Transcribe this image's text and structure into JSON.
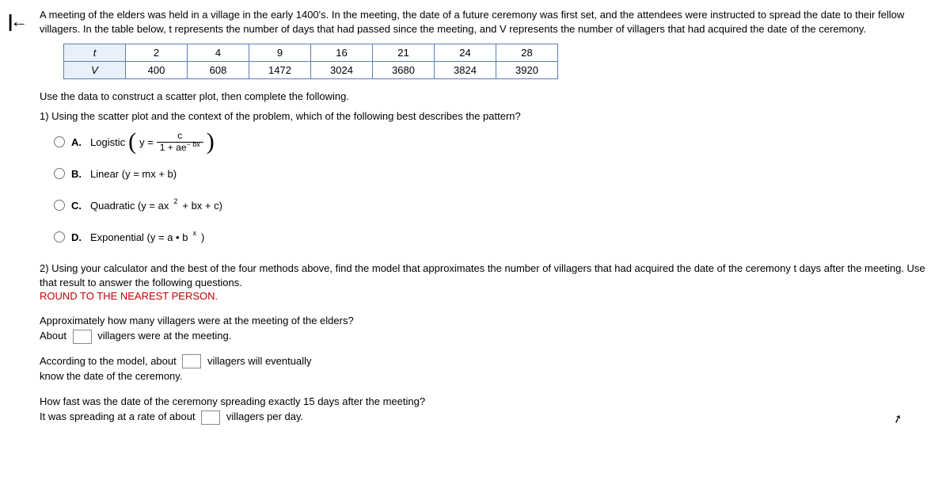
{
  "intro": "A meeting of the elders was held in a village in the early 1400's. In the meeting, the date of a future ceremony was first set, and the attendees were instructed to spread the date to their fellow villagers. In the table below, t represents the number of days that had passed since the meeting, and V represents the number of villagers that had acquired the date of the ceremony.",
  "table": {
    "row1_label": "t",
    "row2_label": "V",
    "t": [
      "2",
      "4",
      "9",
      "16",
      "21",
      "24",
      "28"
    ],
    "v": [
      "400",
      "608",
      "1472",
      "3024",
      "3680",
      "3824",
      "3920"
    ],
    "header_bg": "#eaf0fa",
    "border_color": "#5a7fb5"
  },
  "instruction": "Use the data to construct a scatter plot, then complete the following.",
  "q1": {
    "prompt": "1) Using the scatter plot and the context of the problem, which of the following best describes the pattern?",
    "A": {
      "letter": "A.",
      "name": "Logistic",
      "ypre": "y =",
      "num": "c",
      "den_pre": "1 + a",
      "den_e": "e",
      "den_exp": "− bx"
    },
    "B": {
      "letter": "B.",
      "text": "Linear (y = mx + b)"
    },
    "C": {
      "letter": "C.",
      "pre": "Quadratic (y = ax",
      "exp": "2",
      "post": " + bx + c)"
    },
    "D": {
      "letter": "D.",
      "pre": "Exponential (y = a • b",
      "exp": "x",
      "post": ")"
    }
  },
  "q2": {
    "prompt": "2) Using your calculator and the best of the four methods above, find the model that approximates the number of villagers that had acquired the date of the ceremony t days after the meeting.  Use that result to answer the following questions.",
    "round": "ROUND TO THE NEAREST PERSON.",
    "a_line1": "Approximately how many villagers were at the meeting of the elders?",
    "a_pre": "About",
    "a_post": "villagers were at the meeting.",
    "b_pre": "According to the model, about",
    "b_mid": "villagers will eventually",
    "b_line2": "know the date of the ceremony.",
    "c_line1": "How fast was the date of the ceremony spreading exactly 15 days after the meeting?",
    "c_pre": "It was spreading at a rate of about",
    "c_post": "villagers per day."
  }
}
